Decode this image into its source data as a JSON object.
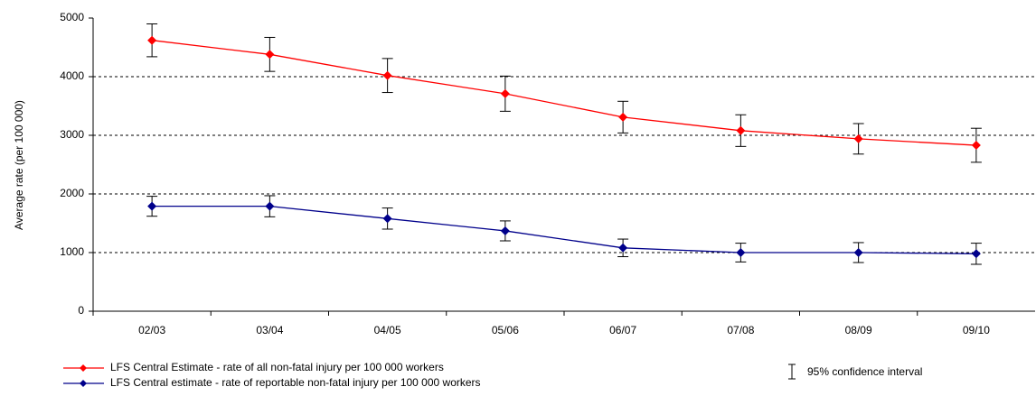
{
  "chart_data": {
    "type": "line",
    "ylabel": "Average rate (per 100 000)",
    "categories": [
      "02/03",
      "03/04",
      "04/05",
      "05/06",
      "06/07",
      "07/08",
      "08/09",
      "09/10"
    ],
    "series": [
      {
        "name": "LFS Central Estimate - rate of all non-fatal injury per 100 000 workers",
        "color": "#ff0000",
        "values": [
          4620,
          4380,
          4020,
          3710,
          3310,
          3080,
          2940,
          2830
        ],
        "errors": [
          280,
          290,
          290,
          300,
          270,
          270,
          260,
          290
        ]
      },
      {
        "name": "LFS Central estimate - rate of reportable non-fatal injury per 100 000 workers",
        "color": "#00008b",
        "values": [
          1790,
          1790,
          1580,
          1370,
          1080,
          1000,
          1000,
          980
        ],
        "errors": [
          170,
          180,
          180,
          170,
          150,
          160,
          170,
          180
        ]
      }
    ],
    "error_legend": "95% confidence interval",
    "ylim": [
      0,
      5000
    ],
    "yticks": [
      0,
      1000,
      2000,
      3000,
      4000,
      5000
    ],
    "grid": true
  }
}
